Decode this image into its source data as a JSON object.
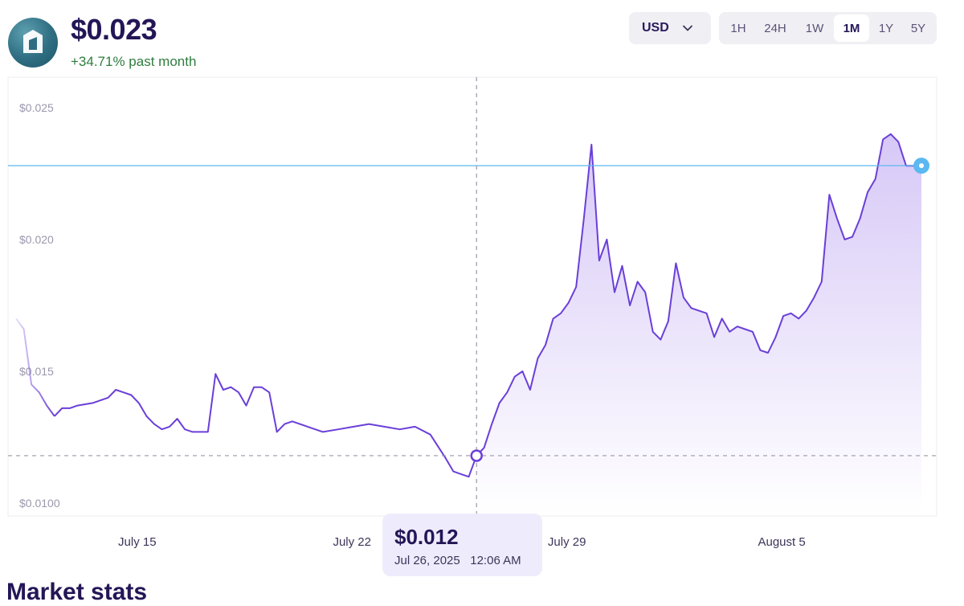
{
  "header": {
    "logo_icon": "token-logo-icon",
    "price": "$0.023",
    "change": "+34.71% past month"
  },
  "controls": {
    "currency": "USD",
    "ranges": [
      "1H",
      "24H",
      "1W",
      "1M",
      "1Y",
      "5Y"
    ],
    "active_range": "1M"
  },
  "tooltip": {
    "price": "$0.012",
    "date": "Jul 26, 2025",
    "time": "12:06 AM"
  },
  "section": {
    "heading": "Market stats"
  },
  "colors": {
    "line": "#6a3fd8",
    "area_top": "#c9b6f4",
    "current_marker": "#5bb8f0",
    "positive": "#2e7d3e"
  },
  "chart_data": {
    "type": "area",
    "title": "",
    "xlabel": "",
    "ylabel": "",
    "x_ticks": [
      {
        "label": "July 15",
        "value": "2025-07-15"
      },
      {
        "label": "July 22",
        "value": "2025-07-22"
      },
      {
        "label": "July 29",
        "value": "2025-07-29"
      },
      {
        "label": "August 5",
        "value": "2025-08-05"
      }
    ],
    "y_ticks": [
      {
        "label": "$0.025",
        "value": 0.025
      },
      {
        "label": "$0.020",
        "value": 0.02
      },
      {
        "label": "$0.015",
        "value": 0.015
      },
      {
        "label": "$0.0100",
        "value": 0.01
      }
    ],
    "ylim": [
      0.01,
      0.025
    ],
    "xlim": [
      "2025-07-11T00:00",
      "2025-08-09T12:00"
    ],
    "current_price": 0.0228,
    "hover": {
      "x": "2025-07-26T00:06",
      "y": 0.0118
    },
    "series": [
      {
        "x": [
          "2025-07-11T00:00",
          "2025-07-11T06:00",
          "2025-07-11T12:00",
          "2025-07-11T18:00",
          "2025-07-12T00:00",
          "2025-07-12T06:00",
          "2025-07-12T12:00",
          "2025-07-12T18:00",
          "2025-07-13T00:00",
          "2025-07-13T12:00",
          "2025-07-14T00:00",
          "2025-07-14T06:00",
          "2025-07-14T12:00",
          "2025-07-14T18:00",
          "2025-07-15T00:00",
          "2025-07-15T06:00",
          "2025-07-15T12:00",
          "2025-07-15T18:00",
          "2025-07-16T00:00",
          "2025-07-16T06:00",
          "2025-07-16T12:00",
          "2025-07-16T18:00",
          "2025-07-17T00:00",
          "2025-07-17T06:00",
          "2025-07-17T12:00",
          "2025-07-17T18:00",
          "2025-07-18T00:00",
          "2025-07-18T06:00",
          "2025-07-18T12:00",
          "2025-07-18T18:00",
          "2025-07-19T00:00",
          "2025-07-19T06:00",
          "2025-07-19T12:00",
          "2025-07-19T18:00",
          "2025-07-20T00:00",
          "2025-07-20T12:00",
          "2025-07-21T00:00",
          "2025-07-21T12:00",
          "2025-07-22T00:00",
          "2025-07-22T12:00",
          "2025-07-23T00:00",
          "2025-07-23T12:00",
          "2025-07-24T00:00",
          "2025-07-24T12:00",
          "2025-07-25T00:00",
          "2025-07-25T06:00",
          "2025-07-25T12:00",
          "2025-07-25T18:00",
          "2025-07-26T00:06",
          "2025-07-26T06:00",
          "2025-07-26T12:00",
          "2025-07-26T18:00",
          "2025-07-27T00:00",
          "2025-07-27T06:00",
          "2025-07-27T12:00",
          "2025-07-27T18:00",
          "2025-07-28T00:00",
          "2025-07-28T06:00",
          "2025-07-28T12:00",
          "2025-07-28T18:00",
          "2025-07-29T00:00",
          "2025-07-29T06:00",
          "2025-07-29T12:00",
          "2025-07-29T18:00",
          "2025-07-30T00:00",
          "2025-07-30T06:00",
          "2025-07-30T12:00",
          "2025-07-30T18:00",
          "2025-07-31T00:00",
          "2025-07-31T06:00",
          "2025-07-31T12:00",
          "2025-07-31T18:00",
          "2025-08-01T00:00",
          "2025-08-01T06:00",
          "2025-08-01T12:00",
          "2025-08-01T18:00",
          "2025-08-02T00:00",
          "2025-08-02T06:00",
          "2025-08-02T12:00",
          "2025-08-02T18:00",
          "2025-08-03T00:00",
          "2025-08-03T06:00",
          "2025-08-03T12:00",
          "2025-08-03T18:00",
          "2025-08-04T00:00",
          "2025-08-04T06:00",
          "2025-08-04T12:00",
          "2025-08-04T18:00",
          "2025-08-05T00:00",
          "2025-08-05T06:00",
          "2025-08-05T12:00",
          "2025-08-05T18:00",
          "2025-08-06T00:00",
          "2025-08-06T06:00",
          "2025-08-06T12:00",
          "2025-08-06T18:00",
          "2025-08-07T00:00",
          "2025-08-07T06:00",
          "2025-08-07T12:00",
          "2025-08-07T18:00",
          "2025-08-08T00:00",
          "2025-08-08T06:00",
          "2025-08-08T12:00",
          "2025-08-08T18:00",
          "2025-08-09T00:00",
          "2025-08-09T06:00",
          "2025-08-09T12:00"
        ],
        "y": [
          0.017,
          0.0166,
          0.0145,
          0.0142,
          0.0137,
          0.0133,
          0.0136,
          0.0136,
          0.0137,
          0.0138,
          0.014,
          0.0143,
          0.0142,
          0.0141,
          0.0138,
          0.0133,
          0.013,
          0.0128,
          0.0129,
          0.0132,
          0.0128,
          0.0127,
          0.0127,
          0.0127,
          0.0149,
          0.0143,
          0.0144,
          0.0142,
          0.0137,
          0.0144,
          0.0144,
          0.0142,
          0.0127,
          0.013,
          0.0131,
          0.0129,
          0.0127,
          0.0128,
          0.0129,
          0.013,
          0.0129,
          0.0128,
          0.0129,
          0.0126,
          0.0117,
          0.0112,
          0.0111,
          0.011,
          0.0118,
          0.0121,
          0.013,
          0.0138,
          0.0142,
          0.0148,
          0.015,
          0.0143,
          0.0155,
          0.016,
          0.017,
          0.0172,
          0.0176,
          0.0182,
          0.0208,
          0.0236,
          0.0192,
          0.02,
          0.018,
          0.019,
          0.0175,
          0.0184,
          0.018,
          0.0165,
          0.0162,
          0.0169,
          0.0191,
          0.0178,
          0.0174,
          0.0173,
          0.0172,
          0.0163,
          0.017,
          0.0165,
          0.0167,
          0.0166,
          0.0165,
          0.0158,
          0.0157,
          0.0163,
          0.0171,
          0.0172,
          0.017,
          0.0173,
          0.0178,
          0.0184,
          0.0217,
          0.0208,
          0.02,
          0.0201,
          0.0208,
          0.0218,
          0.0223,
          0.0238,
          0.024,
          0.0237,
          0.0228,
          0.0228,
          0.0228
        ]
      }
    ]
  }
}
